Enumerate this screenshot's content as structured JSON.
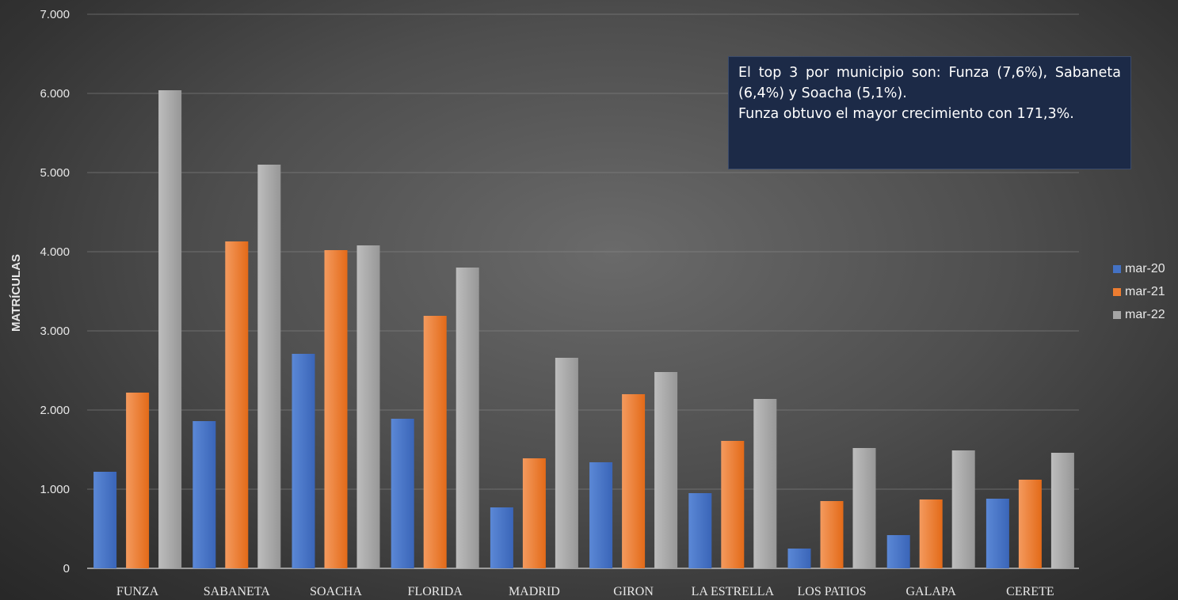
{
  "chart_data": {
    "type": "bar",
    "title": "",
    "xlabel": "",
    "ylabel": "MATRÍCULAS",
    "ylim": [
      0,
      7000
    ],
    "y_ticks": [
      0,
      1000,
      2000,
      3000,
      4000,
      5000,
      6000,
      7000
    ],
    "y_tick_labels": [
      "0",
      "1.000",
      "2.000",
      "3.000",
      "4.000",
      "5.000",
      "6.000",
      "7.000"
    ],
    "grid": true,
    "legend_position": "right",
    "categories": [
      "FUNZA",
      "SABANETA",
      "SOACHA",
      "FLORIDA",
      "MADRID",
      "GIRON",
      "LA ESTRELLA",
      "LOS PATIOS",
      "GALAPA",
      "CERETE"
    ],
    "series": [
      {
        "name": "mar-20",
        "color": "#4472c4",
        "values": [
          1220,
          1860,
          2710,
          1890,
          770,
          1340,
          950,
          250,
          420,
          880
        ]
      },
      {
        "name": "mar-21",
        "color": "#ed7d31",
        "values": [
          2220,
          4130,
          4020,
          3190,
          1390,
          2200,
          1610,
          850,
          870,
          1120
        ]
      },
      {
        "name": "mar-22",
        "color": "#a5a5a5",
        "values": [
          6040,
          5100,
          4080,
          3800,
          2660,
          2480,
          2140,
          1520,
          1490,
          1460
        ]
      }
    ]
  },
  "annotation": {
    "line1": "El top 3 por municipio son: Funza (7,6%), Sabaneta (6,4%) y Soacha (5,1%).",
    "line2": "Funza obtuvo el mayor crecimiento con 171,3%."
  }
}
